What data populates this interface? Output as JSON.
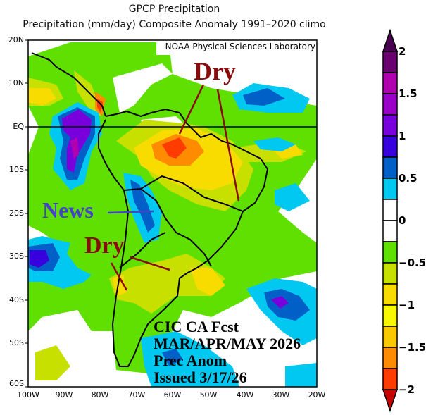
{
  "title": "GPCP Precipitation",
  "subtitle": "Precipitation (mm/day) Composite Anomaly 1991–2020 climo",
  "credit": "NOAA Physical Sciences Laboratory",
  "lat_labels": [
    "20N",
    "10N",
    "EQ",
    "10S",
    "20S",
    "30S",
    "40S",
    "50S",
    "60S"
  ],
  "lon_labels": [
    "100W",
    "90W",
    "80W",
    "70W",
    "60W",
    "50W",
    "40W",
    "30W",
    "20W"
  ],
  "colorbar": {
    "labels": [
      "2",
      "1.5",
      "1",
      "0.5",
      "0",
      "−0.5",
      "−1",
      "−1.5",
      "−2"
    ],
    "colors": [
      "#6a0070",
      "#b000b0",
      "#9a00c8",
      "#7800dc",
      "#3800dc",
      "#0060c8",
      "#00c8f0",
      "#ffffff",
      "#ffffff",
      "#60e000",
      "#c8e000",
      "#f8dc00",
      "#f8f800",
      "#f8c800",
      "#ff8c00",
      "#ff3c00"
    ],
    "over_color": "#4a0050",
    "under_color": "#c80000"
  },
  "annotations": {
    "dry_north": "Dry",
    "news": "News",
    "dry_south": "Dry",
    "dry_color": "#8b0a0a",
    "news_color": "#4444c8"
  },
  "forecast": {
    "line1": "CIC CA Fcst",
    "line2": "MAR/APR/MAY 2026",
    "line3": "Prec Anom",
    "line4": "Issued 3/17/26"
  }
}
